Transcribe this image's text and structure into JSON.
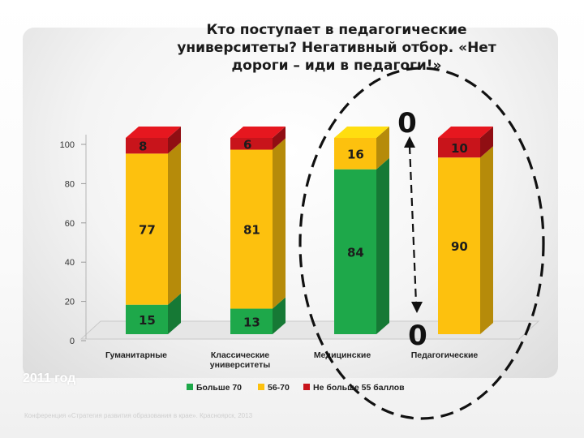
{
  "slide": {
    "title_lines": [
      "Кто поступает в педагогические",
      "университеты?           Негативный отбор. «Нет",
      "дороги – иди в педагоги!»"
    ],
    "footer_year": "2011 год",
    "footer_source": "Конференция «Стратегия развития образования в крае». Красноярск, 2013"
  },
  "chart_data": {
    "type": "bar",
    "stacked": true,
    "categories": [
      "Гуманитарные",
      "Классические университеты",
      "Медицинские",
      "Педагогические"
    ],
    "category_lines": [
      [
        "Гуманитарные"
      ],
      [
        "Классические",
        "университеты"
      ],
      [
        "Медицинские"
      ],
      [
        "Педагогические"
      ]
    ],
    "series": [
      {
        "name": "Больше 70",
        "values": [
          15,
          13,
          84,
          0
        ],
        "color": "#1ea84a"
      },
      {
        "name": "56-70",
        "values": [
          77,
          81,
          16,
          90
        ],
        "color": "#fdc10e"
      },
      {
        "name": "Не больше 55 баллов",
        "values": [
          8,
          6,
          0,
          10
        ],
        "color": "#c8141b"
      }
    ],
    "data_labels": [
      {
        "category": 0,
        "series": 0,
        "text": "15"
      },
      {
        "category": 0,
        "series": 1,
        "text": "77"
      },
      {
        "category": 0,
        "series": 2,
        "text": "8"
      },
      {
        "category": 1,
        "series": 0,
        "text": "13"
      },
      {
        "category": 1,
        "series": 1,
        "text": "81"
      },
      {
        "category": 1,
        "series": 2,
        "text": "6"
      },
      {
        "category": 2,
        "series": 0,
        "text": "84"
      },
      {
        "category": 2,
        "series": 1,
        "text": "16"
      },
      {
        "category": 3,
        "series": 1,
        "text": "90"
      },
      {
        "category": 3,
        "series": 2,
        "text": "10"
      }
    ],
    "annotations": {
      "top_zero": "0",
      "bottom_zero": "0"
    },
    "yticks": [
      0,
      20,
      40,
      60,
      80,
      100
    ],
    "ylim": [
      0,
      100
    ],
    "grid": false,
    "legend_position": "bottom"
  }
}
